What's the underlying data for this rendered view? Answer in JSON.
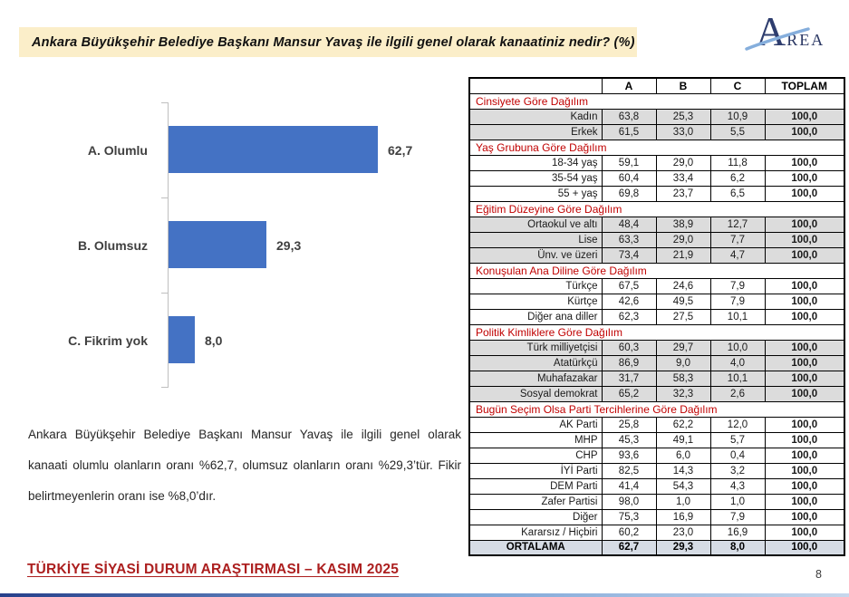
{
  "header": {
    "title": "Ankara Büyükşehir Belediye Başkanı Mansur Yavaş ile ilgili genel olarak kanaatiniz nedir? (%)",
    "logo": {
      "initial": "A",
      "rest": "REA"
    }
  },
  "chart_data": {
    "type": "bar",
    "orientation": "horizontal",
    "title": "",
    "xlabel": "",
    "ylabel": "",
    "categories": [
      "A. Olumlu",
      "B. Olumsuz",
      "C. Fikrim yok"
    ],
    "values": [
      62.7,
      29.3,
      8.0
    ],
    "value_labels": [
      "62,7",
      "29,3",
      "8,0"
    ],
    "bar_color": "#4472C4",
    "xlim": [
      0,
      70
    ],
    "grid": false,
    "legend": "none"
  },
  "table": {
    "columns": [
      "",
      "A",
      "B",
      "C",
      "TOPLAM"
    ],
    "sections": [
      {
        "header": "Cinsiyete Göre Dağılım",
        "shaded": true,
        "rows": [
          {
            "label": "Kadın",
            "a": "63,8",
            "b": "25,3",
            "c": "10,9",
            "total": "100,0"
          },
          {
            "label": "Erkek",
            "a": "61,5",
            "b": "33,0",
            "c": "5,5",
            "total": "100,0"
          }
        ]
      },
      {
        "header": "Yaş Grubuna Göre Dağılım",
        "shaded": false,
        "rows": [
          {
            "label": "18-34 yaş",
            "a": "59,1",
            "b": "29,0",
            "c": "11,8",
            "total": "100,0"
          },
          {
            "label": "35-54 yaş",
            "a": "60,4",
            "b": "33,4",
            "c": "6,2",
            "total": "100,0"
          },
          {
            "label": "55 + yaş",
            "a": "69,8",
            "b": "23,7",
            "c": "6,5",
            "total": "100,0"
          }
        ]
      },
      {
        "header": "Eğitim Düzeyine Göre Dağılım",
        "shaded": true,
        "rows": [
          {
            "label": "Ortaokul ve altı",
            "a": "48,4",
            "b": "38,9",
            "c": "12,7",
            "total": "100,0"
          },
          {
            "label": "Lise",
            "a": "63,3",
            "b": "29,0",
            "c": "7,7",
            "total": "100,0"
          },
          {
            "label": "Ünv. ve üzeri",
            "a": "73,4",
            "b": "21,9",
            "c": "4,7",
            "total": "100,0"
          }
        ]
      },
      {
        "header": "Konuşulan Ana Diline Göre Dağılım",
        "shaded": false,
        "rows": [
          {
            "label": "Türkçe",
            "a": "67,5",
            "b": "24,6",
            "c": "7,9",
            "total": "100,0"
          },
          {
            "label": "Kürtçe",
            "a": "42,6",
            "b": "49,5",
            "c": "7,9",
            "total": "100,0"
          },
          {
            "label": "Diğer ana diller",
            "a": "62,3",
            "b": "27,5",
            "c": "10,1",
            "total": "100,0"
          }
        ]
      },
      {
        "header": "Politik Kimliklere Göre Dağılım",
        "shaded": true,
        "rows": [
          {
            "label": "Türk milliyetçisi",
            "a": "60,3",
            "b": "29,7",
            "c": "10,0",
            "total": "100,0"
          },
          {
            "label": "Atatürkçü",
            "a": "86,9",
            "b": "9,0",
            "c": "4,0",
            "total": "100,0"
          },
          {
            "label": "Muhafazakar",
            "a": "31,7",
            "b": "58,3",
            "c": "10,1",
            "total": "100,0"
          },
          {
            "label": "Sosyal demokrat",
            "a": "65,2",
            "b": "32,3",
            "c": "2,6",
            "total": "100,0"
          }
        ]
      },
      {
        "header": "Bugün Seçim Olsa Parti Tercihlerine Göre Dağılım",
        "shaded": false,
        "rows": [
          {
            "label": "AK Parti",
            "a": "25,8",
            "b": "62,2",
            "c": "12,0",
            "total": "100,0"
          },
          {
            "label": "MHP",
            "a": "45,3",
            "b": "49,1",
            "c": "5,7",
            "total": "100,0"
          },
          {
            "label": "CHP",
            "a": "93,6",
            "b": "6,0",
            "c": "0,4",
            "total": "100,0"
          },
          {
            "label": "İYİ Parti",
            "a": "82,5",
            "b": "14,3",
            "c": "3,2",
            "total": "100,0"
          },
          {
            "label": "DEM Parti",
            "a": "41,4",
            "b": "54,3",
            "c": "4,3",
            "total": "100,0"
          },
          {
            "label": "Zafer Partisi",
            "a": "98,0",
            "b": "1,0",
            "c": "1,0",
            "total": "100,0"
          },
          {
            "label": "Diğer",
            "a": "75,3",
            "b": "16,9",
            "c": "7,9",
            "total": "100,0"
          },
          {
            "label": "Kararsız / Hiçbiri",
            "a": "60,2",
            "b": "23,0",
            "c": "16,9",
            "total": "100,0"
          }
        ]
      }
    ],
    "average_row": {
      "label": "ORTALAMA",
      "a": "62,7",
      "b": "29,3",
      "c": "8,0",
      "total": "100,0"
    }
  },
  "summary": {
    "text": "Ankara Büyükşehir Belediye Başkanı Mansur Yavaş ile ilgili genel olarak kanaati olumlu olanların oranı %62,7, olumsuz olanların oranı %29,3’tür. Fikir belirtmeyenlerin oranı ise %8,0’dır."
  },
  "footer": {
    "text": "TÜRKİYE SİYASİ DURUM ARAŞTIRMASI – KASIM 2025",
    "page_number": "8"
  }
}
